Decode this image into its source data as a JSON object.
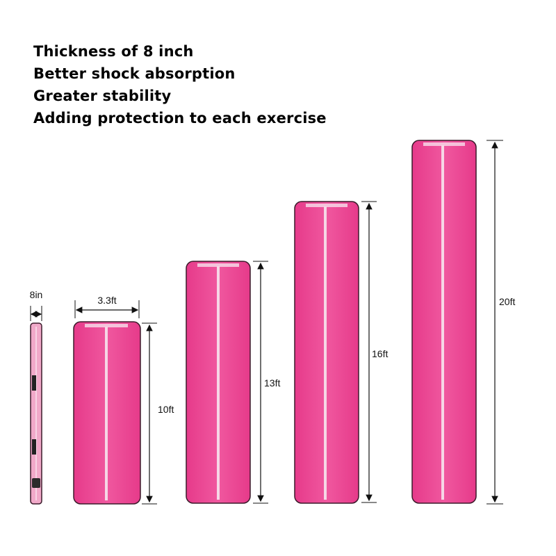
{
  "features": [
    "Thickness of 8 inch",
    "Better shock absorption",
    "Greater stability",
    "Adding protection to each exercise"
  ],
  "dimensions": {
    "thickness": "8in",
    "width": "3.3ft",
    "lengths": [
      "10ft",
      "13ft",
      "16ft",
      "20ft"
    ]
  },
  "colors": {
    "mat_pink": "#ec4a97",
    "mat_edge": "#3a1a2a",
    "center_stripe": "#f6d7e6",
    "side_pink": "#f1a9c9"
  }
}
